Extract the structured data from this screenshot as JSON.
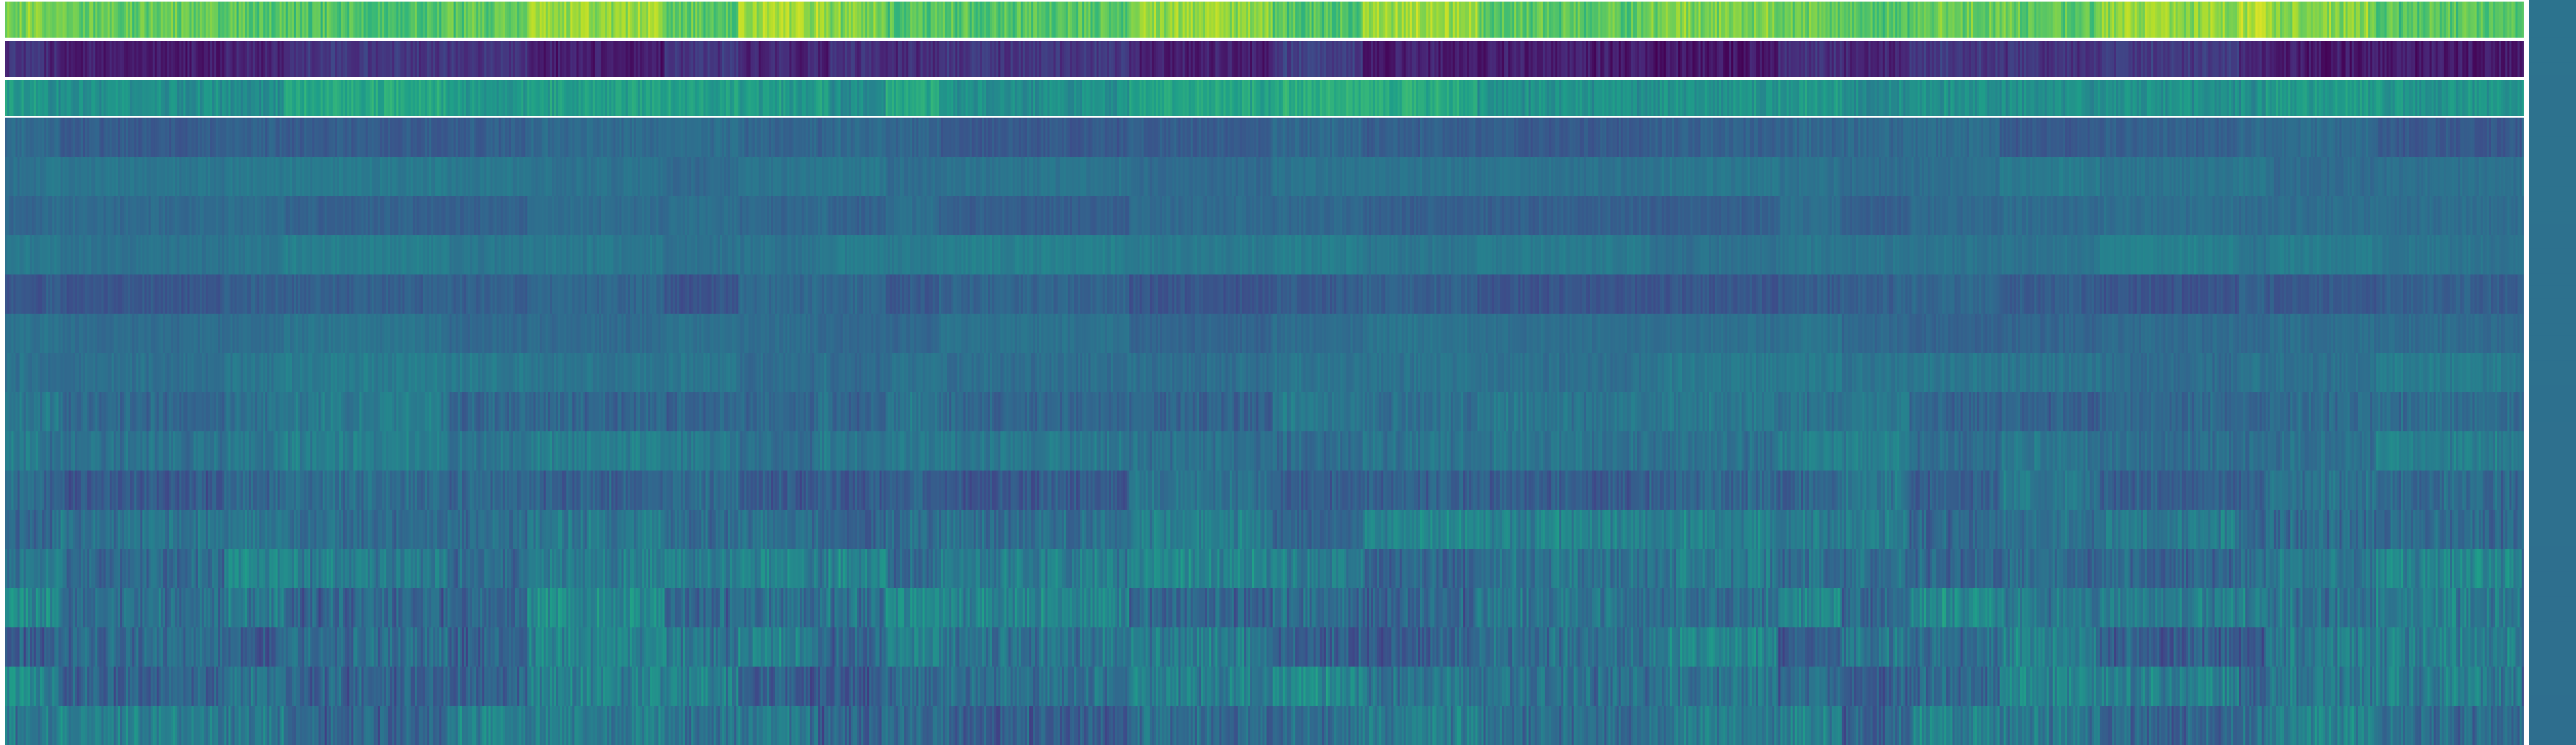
{
  "chart_data": {
    "type": "heatmap",
    "title": "",
    "xlabel": "",
    "ylabel": "",
    "colormap": "viridis",
    "colormap_anchors": [
      "#440154",
      "#482878",
      "#3e4a89",
      "#31688e",
      "#26828e",
      "#1f9e89",
      "#35b779",
      "#6ece58",
      "#b5de2b",
      "#fde725"
    ],
    "value_range": [
      0,
      1
    ],
    "n_rows": 19,
    "n_columns": 1230,
    "row_mean_values": [
      0.8,
      0.12,
      0.55,
      0.32,
      0.38,
      0.33,
      0.4,
      0.3,
      0.35,
      0.38,
      0.36,
      0.38,
      0.34,
      0.38,
      0.4,
      0.4,
      0.38,
      0.38,
      0.37
    ],
    "row_variation": [
      0.1,
      0.07,
      0.08,
      0.05,
      0.04,
      0.04,
      0.04,
      0.05,
      0.04,
      0.05,
      0.06,
      0.06,
      0.07,
      0.08,
      0.09,
      0.1,
      0.1,
      0.1,
      0.1
    ],
    "column_segment_boundaries": [
      0,
      84,
      112,
      426,
      541,
      855,
      1006,
      1270,
      1408,
      1563,
      1582,
      1690,
      1792,
      2158,
      2430,
      2603,
      2822,
      3151,
      3400,
      3521,
      3650,
      3820,
      4012,
      4280,
      4330,
      4540,
      4820
    ],
    "colorbar": {
      "present": true,
      "ticks": [],
      "value_range": [
        0,
        1
      ]
    },
    "seed": 20240517
  }
}
